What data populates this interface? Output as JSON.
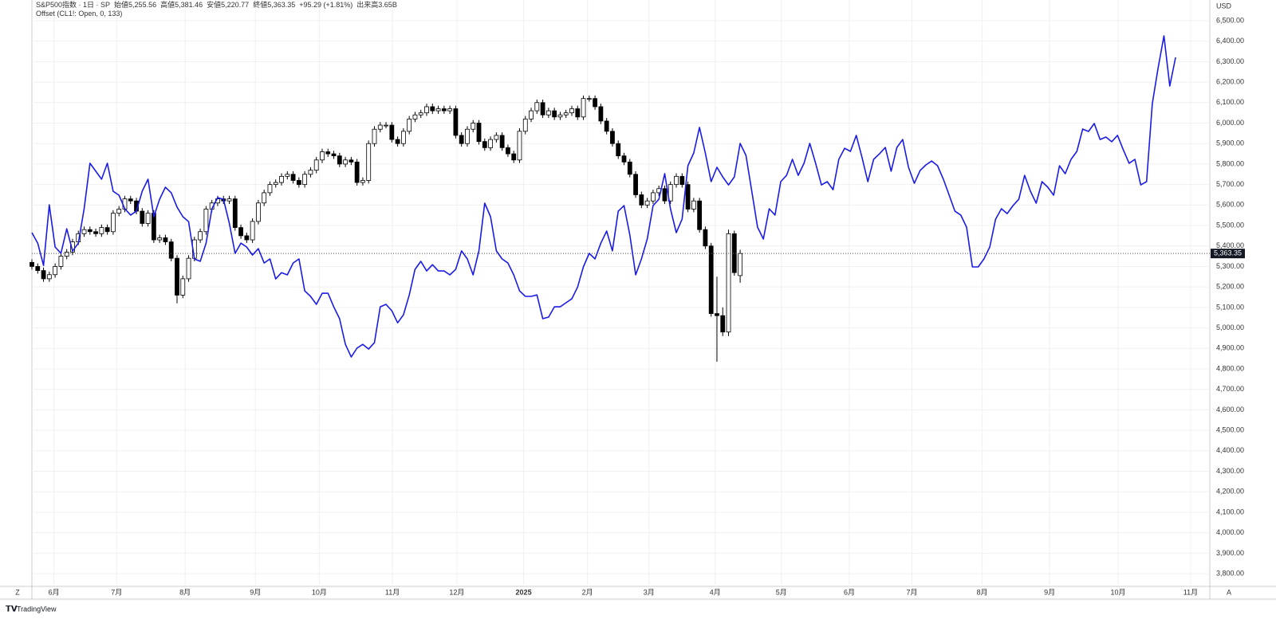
{
  "chart_data": {
    "type": "candlestick",
    "title": "S&P500指数 · 1日 · SP",
    "legend_values": [
      "始値5,255.56",
      "高値5,381.46",
      "安値5,220.77",
      "終値5,363.35",
      "+95.29 (+1.81%)",
      "出来高3.65B"
    ],
    "currency": "USD",
    "last_price_label": "5,363.35",
    "grid": true,
    "xlim": [
      0,
      202.9
    ],
    "xticks": [
      {
        "value": 3.8,
        "label": "6月"
      },
      {
        "value": 14.6,
        "label": "7月"
      },
      {
        "value": 26.4,
        "label": "8月"
      },
      {
        "value": 38.5,
        "label": "9月"
      },
      {
        "value": 49.5,
        "label": "10月"
      },
      {
        "value": 62.1,
        "label": "11月"
      },
      {
        "value": 73.2,
        "label": "12月"
      },
      {
        "value": 84.7,
        "label": "2025"
      },
      {
        "value": 95.7,
        "label": "2月"
      },
      {
        "value": 106.3,
        "label": "3月"
      },
      {
        "value": 117.7,
        "label": "4月"
      },
      {
        "value": 129.1,
        "label": "5月"
      },
      {
        "value": 140.8,
        "label": "6月"
      },
      {
        "value": 151.6,
        "label": "7月"
      },
      {
        "value": 163.7,
        "label": "8月"
      },
      {
        "value": 175.3,
        "label": "9月"
      },
      {
        "value": 187.1,
        "label": "10月"
      },
      {
        "value": 199.6,
        "label": "11月"
      }
    ],
    "ylim": [
      3742,
      6601
    ],
    "yticks": [
      {
        "value": 3800,
        "label": "3,800.00"
      },
      {
        "value": 3900,
        "label": "3,900.00"
      },
      {
        "value": 4000,
        "label": "4,000.00"
      },
      {
        "value": 4100,
        "label": "4,100.00"
      },
      {
        "value": 4200,
        "label": "4,200.00"
      },
      {
        "value": 4300,
        "label": "4,300.00"
      },
      {
        "value": 4400,
        "label": "4,400.00"
      },
      {
        "value": 4500,
        "label": "4,500.00"
      },
      {
        "value": 4600,
        "label": "4,600.00"
      },
      {
        "value": 4700,
        "label": "4,700.00"
      },
      {
        "value": 4800,
        "label": "4,800.00"
      },
      {
        "value": 4900,
        "label": "4,900.00"
      },
      {
        "value": 5000,
        "label": "5,000.00"
      },
      {
        "value": 5100,
        "label": "5,100.00"
      },
      {
        "value": 5200,
        "label": "5,200.00"
      },
      {
        "value": 5300,
        "label": "5,300.00"
      },
      {
        "value": 5400,
        "label": "5,400.00"
      },
      {
        "value": 5500,
        "label": "5,500.00"
      },
      {
        "value": 5600,
        "label": "5,600.00"
      },
      {
        "value": 5700,
        "label": "5,700.00"
      },
      {
        "value": 5800,
        "label": "5,800.00"
      },
      {
        "value": 5900,
        "label": "5,900.00"
      },
      {
        "value": 6000,
        "label": "6,000.00"
      },
      {
        "value": 6100,
        "label": "6,100.00"
      },
      {
        "value": 6200,
        "label": "6,200.00"
      },
      {
        "value": 6300,
        "label": "6,300.00"
      },
      {
        "value": 6400,
        "label": "6,400.00"
      },
      {
        "value": 6500,
        "label": "6,500.00"
      }
    ],
    "series": [
      {
        "type": "candlestick",
        "up_color": "#ffffff",
        "down_color": "#000000",
        "open": [
          5320,
          5300,
          5280,
          5240,
          5260,
          5300,
          5350,
          5370,
          5420,
          5460,
          5480,
          5470,
          5460,
          5490,
          5470,
          5560,
          5580,
          5630,
          5620,
          5570,
          5510,
          5560,
          5430,
          5440,
          5420,
          5340,
          5160,
          5240,
          5340,
          5430,
          5470,
          5580,
          5610,
          5630,
          5620,
          5630,
          5490,
          5450,
          5430,
          5520,
          5610,
          5660,
          5700,
          5710,
          5740,
          5750,
          5720,
          5700,
          5750,
          5770,
          5820,
          5860,
          5850,
          5840,
          5800,
          5820,
          5810,
          5710,
          5720,
          5900,
          5970,
          5990,
          5990,
          5920,
          5900,
          5960,
          6020,
          6040,
          6050,
          6080,
          6060,
          6070,
          6060,
          6070,
          5940,
          5900,
          5970,
          6000,
          5910,
          5880,
          5920,
          5940,
          5880,
          5850,
          5820,
          5960,
          6020,
          6060,
          6100,
          6040,
          6060,
          6030,
          6040,
          6050,
          6070,
          6030,
          6120,
          6120,
          6080,
          6010,
          5960,
          5900,
          5840,
          5810,
          5750,
          5650,
          5600,
          5620,
          5660,
          5680,
          5620,
          5700,
          5740,
          5700,
          5580,
          5620,
          5480,
          5400,
          5070,
          5060,
          4980,
          5460,
          5255.56
        ],
        "high": [
          5335,
          5315,
          5295,
          5275,
          5315,
          5365,
          5385,
          5435,
          5475,
          5495,
          5495,
          5485,
          5505,
          5505,
          5575,
          5595,
          5645,
          5645,
          5635,
          5585,
          5575,
          5575,
          5455,
          5455,
          5435,
          5355,
          5255,
          5355,
          5445,
          5485,
          5595,
          5625,
          5645,
          5645,
          5645,
          5645,
          5505,
          5465,
          5535,
          5625,
          5675,
          5715,
          5725,
          5755,
          5765,
          5765,
          5735,
          5765,
          5785,
          5835,
          5875,
          5875,
          5865,
          5855,
          5835,
          5835,
          5825,
          5735,
          5915,
          5985,
          6005,
          6005,
          6005,
          5935,
          5975,
          6035,
          6055,
          6065,
          6095,
          6095,
          6085,
          6085,
          6085,
          6085,
          5955,
          5985,
          6015,
          6015,
          5925,
          5935,
          5955,
          5955,
          5895,
          5865,
          5975,
          6035,
          6075,
          6115,
          6115,
          6075,
          6075,
          6055,
          6065,
          6085,
          6085,
          6135,
          6135,
          6135,
          6095,
          6025,
          5975,
          5915,
          5855,
          5825,
          5765,
          5665,
          5635,
          5675,
          5695,
          5695,
          5715,
          5755,
          5755,
          5715,
          5635,
          5635,
          5495,
          5415,
          5250,
          5100,
          5480,
          5475,
          5381.46
        ],
        "low": [
          5285,
          5265,
          5225,
          5225,
          5245,
          5285,
          5335,
          5355,
          5405,
          5445,
          5455,
          5445,
          5445,
          5455,
          5455,
          5545,
          5565,
          5605,
          5555,
          5495,
          5495,
          5415,
          5415,
          5405,
          5325,
          5120,
          5145,
          5225,
          5325,
          5415,
          5455,
          5565,
          5595,
          5605,
          5605,
          5475,
          5435,
          5415,
          5415,
          5505,
          5595,
          5645,
          5685,
          5695,
          5725,
          5705,
          5685,
          5685,
          5735,
          5755,
          5805,
          5835,
          5825,
          5785,
          5785,
          5795,
          5695,
          5695,
          5705,
          5885,
          5955,
          5975,
          5905,
          5885,
          5885,
          5945,
          6005,
          6025,
          6035,
          6045,
          6045,
          6045,
          6045,
          5925,
          5885,
          5885,
          5955,
          5895,
          5865,
          5865,
          5905,
          5865,
          5835,
          5805,
          5805,
          5945,
          6005,
          6045,
          6025,
          6025,
          6015,
          6015,
          6025,
          6035,
          6015,
          6015,
          6105,
          6065,
          5995,
          5945,
          5885,
          5825,
          5795,
          5735,
          5635,
          5585,
          5585,
          5605,
          5645,
          5605,
          5605,
          5685,
          5685,
          5565,
          5565,
          5465,
          5385,
          5055,
          4835,
          4960,
          4960,
          5255,
          5220.77
        ],
        "close": [
          5300,
          5280,
          5240,
          5260,
          5300,
          5350,
          5370,
          5420,
          5460,
          5480,
          5470,
          5460,
          5490,
          5470,
          5560,
          5580,
          5630,
          5620,
          5570,
          5510,
          5560,
          5430,
          5440,
          5420,
          5340,
          5160,
          5240,
          5340,
          5430,
          5470,
          5580,
          5610,
          5630,
          5620,
          5630,
          5490,
          5450,
          5430,
          5520,
          5610,
          5660,
          5700,
          5710,
          5740,
          5750,
          5720,
          5700,
          5750,
          5770,
          5820,
          5860,
          5850,
          5840,
          5800,
          5820,
          5810,
          5710,
          5720,
          5900,
          5970,
          5990,
          5990,
          5920,
          5900,
          5960,
          6020,
          6040,
          6050,
          6080,
          6060,
          6070,
          6060,
          6070,
          5940,
          5900,
          5970,
          6000,
          5910,
          5880,
          5920,
          5940,
          5880,
          5850,
          5820,
          5960,
          6020,
          6060,
          6100,
          6040,
          6060,
          6030,
          6040,
          6050,
          6070,
          6030,
          6120,
          6120,
          6080,
          6010,
          5960,
          5900,
          5840,
          5810,
          5750,
          5650,
          5600,
          5620,
          5660,
          5680,
          5620,
          5700,
          5740,
          5700,
          5580,
          5620,
          5480,
          5400,
          5070,
          5060,
          4980,
          5460,
          5270,
          5363.35
        ]
      },
      {
        "type": "line",
        "name": "Offset (CL1!: Open, 0, 133)",
        "color": "#1b1be6",
        "values": [
          5465,
          5414,
          5305,
          5601,
          5395,
          5364,
          5484,
          5375,
          5414,
          5582,
          5804,
          5765,
          5726,
          5804,
          5667,
          5648,
          5582,
          5551,
          5570,
          5667,
          5726,
          5543,
          5628,
          5687,
          5660,
          5590,
          5543,
          5519,
          5337,
          5325,
          5414,
          5582,
          5636,
          5628,
          5512,
          5364,
          5414,
          5395,
          5356,
          5387,
          5317,
          5337,
          5239,
          5270,
          5259,
          5317,
          5337,
          5181,
          5154,
          5115,
          5169,
          5169,
          5103,
          5045,
          4920,
          4858,
          4901,
          4920,
          4897,
          4928,
          5103,
          5115,
          5084,
          5025,
          5064,
          5161,
          5286,
          5325,
          5278,
          5309,
          5278,
          5278,
          5259,
          5286,
          5376,
          5337,
          5259,
          5376,
          5609,
          5543,
          5376,
          5337,
          5317,
          5259,
          5181,
          5154,
          5154,
          5161,
          5045,
          5053,
          5103,
          5103,
          5123,
          5142,
          5200,
          5298,
          5364,
          5337,
          5414,
          5473,
          5376,
          5570,
          5597,
          5453,
          5259,
          5337,
          5434,
          5597,
          5628,
          5753,
          5582,
          5465,
          5531,
          5792,
          5854,
          5979,
          5854,
          5714,
          5784,
          5737,
          5698,
          5737,
          5901,
          5842,
          5667,
          5492,
          5434,
          5582,
          5551,
          5714,
          5745,
          5823,
          5745,
          5804,
          5901,
          5804,
          5698,
          5714,
          5675,
          5823,
          5877,
          5862,
          5940,
          5831,
          5714,
          5823,
          5850,
          5881,
          5765,
          5881,
          5920,
          5784,
          5706,
          5769,
          5796,
          5815,
          5792,
          5726,
          5648,
          5570,
          5551,
          5492,
          5298,
          5298,
          5337,
          5395,
          5531,
          5582,
          5558,
          5597,
          5628,
          5745,
          5667,
          5609,
          5714,
          5687,
          5648,
          5792,
          5753,
          5823,
          5862,
          5971,
          5959,
          5998,
          5920,
          5932,
          5909,
          5940,
          5870,
          5804,
          5823,
          5698,
          5714,
          6095,
          6270,
          6426,
          6181,
          6321
        ]
      }
    ]
  },
  "ui": {
    "scale_left": "Z",
    "scale_right": "A",
    "brand": "TradingView"
  }
}
